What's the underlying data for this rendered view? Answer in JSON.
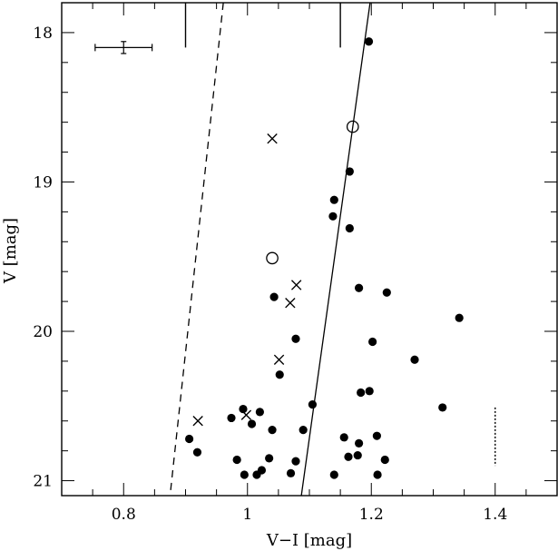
{
  "chart_data": {
    "type": "scatter",
    "xlabel": "V−I [mag]",
    "ylabel": "V [mag]",
    "xlim": [
      0.7,
      1.5
    ],
    "ylim": [
      21.1,
      17.8
    ],
    "y_inverted": true,
    "x_ticks": [
      {
        "value": 0.8,
        "label": "0.8"
      },
      {
        "value": 1.0,
        "label": "1"
      },
      {
        "value": 1.2,
        "label": "1.2"
      },
      {
        "value": 1.4,
        "label": "1.4"
      }
    ],
    "y_ticks": [
      {
        "value": 18,
        "label": "18"
      },
      {
        "value": 19,
        "label": "19"
      },
      {
        "value": 20,
        "label": "20"
      },
      {
        "value": 21,
        "label": "21"
      }
    ],
    "x_minor_step": 0.05,
    "y_minor_step": 0.2,
    "series": [
      {
        "marker": "filled-circle",
        "points": [
          [
            1.196,
            18.06
          ],
          [
            1.14,
            19.12
          ],
          [
            1.138,
            19.23
          ],
          [
            1.165,
            18.93
          ],
          [
            1.165,
            19.31
          ],
          [
            1.043,
            19.77
          ],
          [
            1.18,
            19.71
          ],
          [
            1.225,
            19.74
          ],
          [
            1.078,
            20.05
          ],
          [
            1.202,
            20.07
          ],
          [
            1.342,
            19.91
          ],
          [
            1.27,
            20.19
          ],
          [
            1.052,
            20.29
          ],
          [
            1.183,
            20.41
          ],
          [
            1.197,
            20.4
          ],
          [
            1.105,
            20.49
          ],
          [
            1.315,
            20.51
          ],
          [
            0.993,
            20.52
          ],
          [
            1.02,
            20.54
          ],
          [
            0.974,
            20.58
          ],
          [
            1.007,
            20.62
          ],
          [
            1.04,
            20.66
          ],
          [
            1.09,
            20.66
          ],
          [
            0.906,
            20.72
          ],
          [
            1.156,
            20.71
          ],
          [
            1.209,
            20.7
          ],
          [
            1.18,
            20.75
          ],
          [
            0.919,
            20.81
          ],
          [
            1.178,
            20.83
          ],
          [
            1.163,
            20.84
          ],
          [
            0.983,
            20.86
          ],
          [
            1.035,
            20.85
          ],
          [
            1.078,
            20.87
          ],
          [
            1.222,
            20.86
          ],
          [
            1.023,
            20.93
          ],
          [
            0.995,
            20.96
          ],
          [
            1.015,
            20.96
          ],
          [
            1.07,
            20.95
          ],
          [
            1.14,
            20.96
          ],
          [
            1.21,
            20.96
          ]
        ]
      },
      {
        "marker": "open-circle",
        "points": [
          [
            1.17,
            18.63
          ],
          [
            1.04,
            19.51
          ]
        ]
      },
      {
        "marker": "cross",
        "points": [
          [
            1.04,
            18.71
          ],
          [
            1.079,
            19.69
          ],
          [
            1.069,
            19.81
          ],
          [
            1.051,
            20.19
          ],
          [
            0.92,
            20.6
          ],
          [
            0.998,
            20.56
          ]
        ]
      }
    ],
    "lines": [
      {
        "style": "solid",
        "points": [
          [
            1.198,
            17.8
          ],
          [
            1.087,
            21.1
          ]
        ]
      },
      {
        "style": "dashed",
        "points": [
          [
            0.961,
            17.8
          ],
          [
            0.875,
            21.1
          ]
        ]
      },
      {
        "style": "dotted",
        "points": [
          [
            1.4,
            20.51
          ],
          [
            1.4,
            20.9
          ]
        ]
      }
    ],
    "top_markers": [
      {
        "x": 0.9,
        "y_from": 17.8,
        "y_to": 18.1
      },
      {
        "x": 1.15,
        "y_from": 17.8,
        "y_to": 18.1
      }
    ],
    "error_bar": {
      "x": 0.8,
      "y": 18.1,
      "x_err": 0.046,
      "y_err": 0.04
    }
  },
  "colors": {
    "ink": "#000000",
    "background": "#ffffff"
  }
}
